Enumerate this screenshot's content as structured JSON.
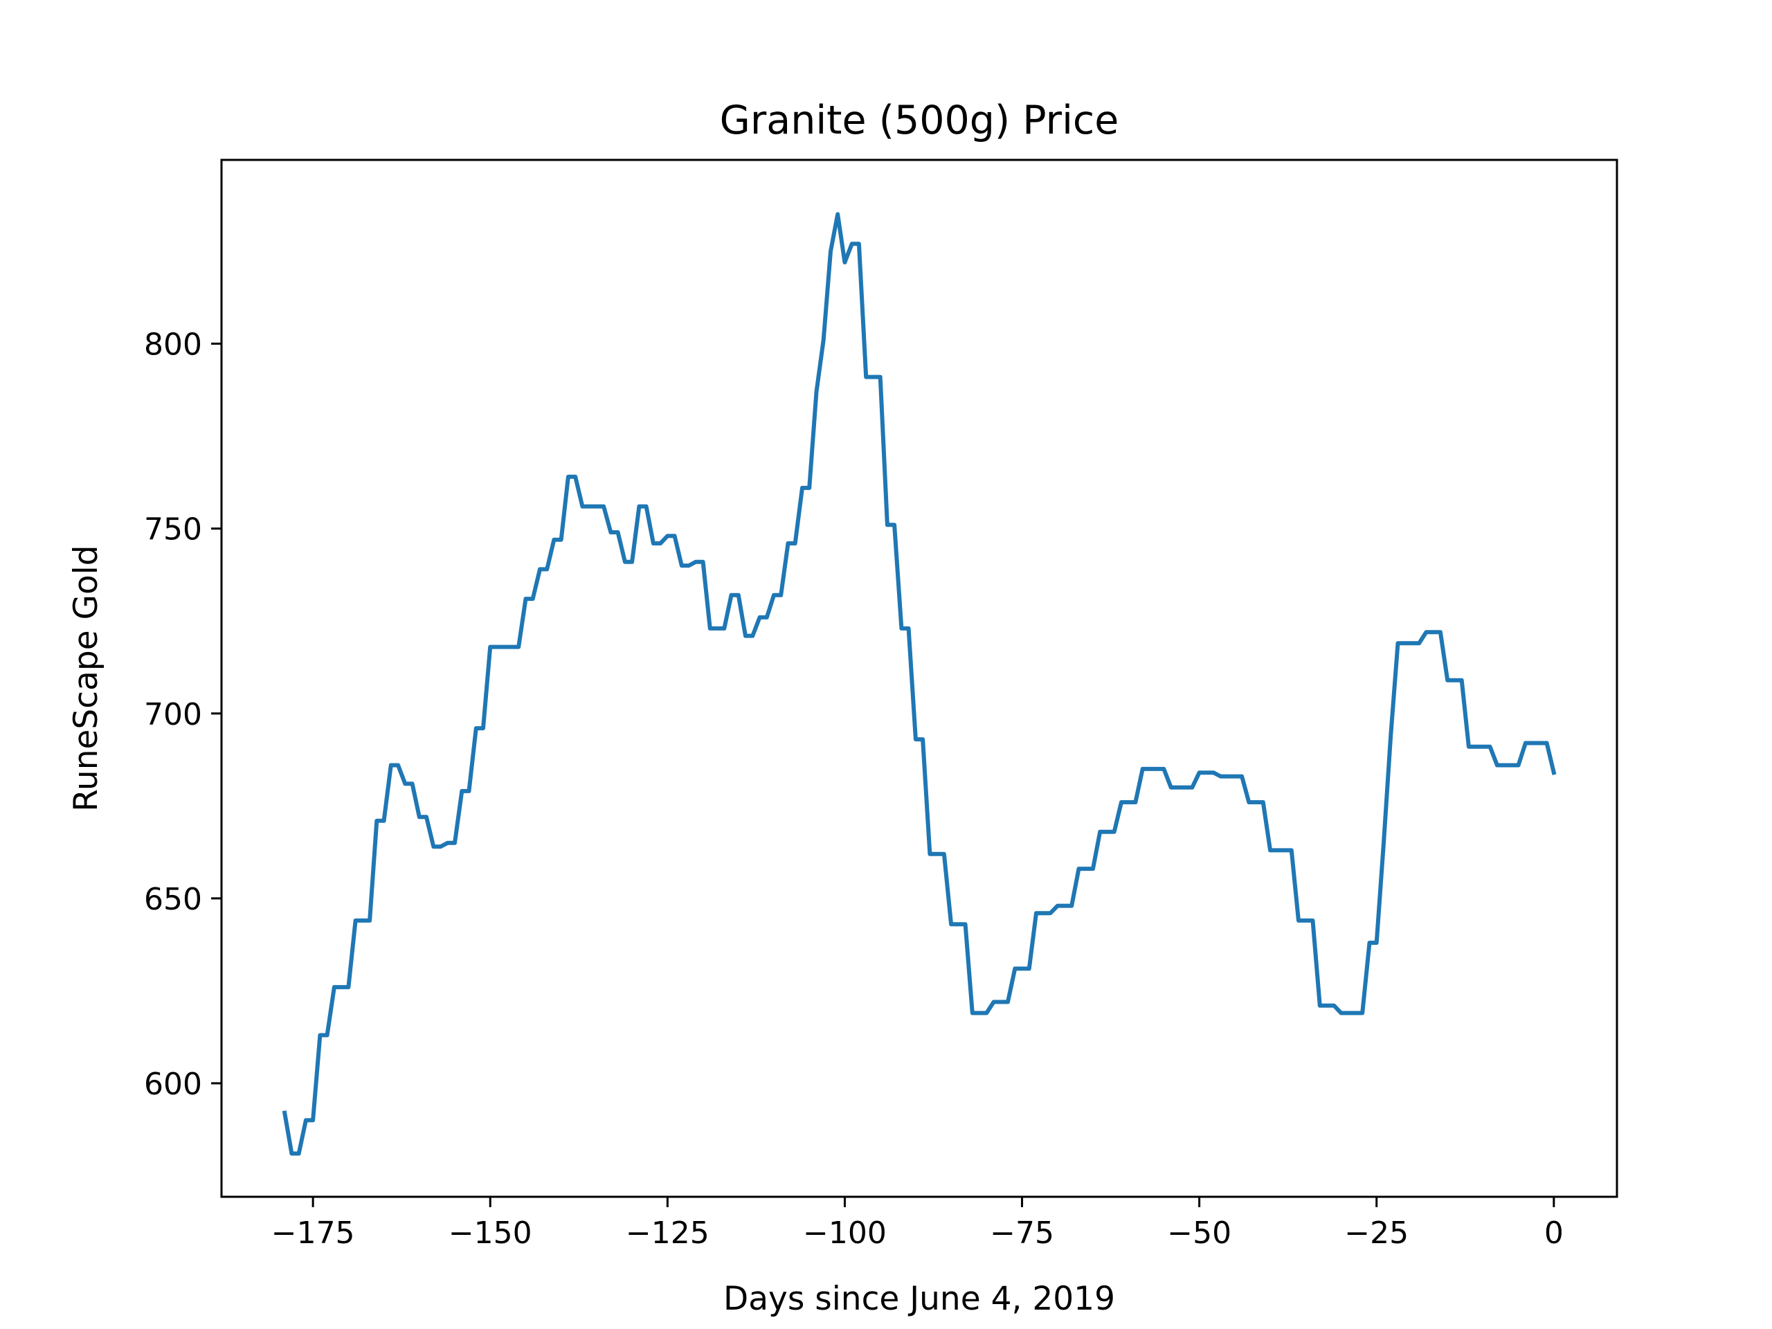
{
  "chart_data": {
    "type": "line",
    "title": "Granite (500g) Price",
    "xlabel": "Days since June 4, 2019",
    "ylabel": "RuneScape Gold",
    "xlim": [
      -187.9,
      8.9
    ],
    "ylim": [
      569.3,
      849.7
    ],
    "xticks": [
      -175,
      -150,
      -125,
      -100,
      -75,
      -50,
      -25,
      0
    ],
    "xtick_labels": [
      "−175",
      "−150",
      "−125",
      "−100",
      "−75",
      "−50",
      "−25",
      "0"
    ],
    "yticks": [
      600,
      650,
      700,
      750,
      800
    ],
    "ytick_labels": [
      "600",
      "650",
      "700",
      "750",
      "800"
    ],
    "grid": false,
    "legend": "none",
    "series": [
      {
        "color": "#1f77b4",
        "x": [
          -179,
          -178,
          -177,
          -176,
          -175,
          -174,
          -173,
          -172,
          -171,
          -170,
          -169,
          -168,
          -167,
          -166,
          -165,
          -164,
          -163,
          -162,
          -161,
          -160,
          -159,
          -158,
          -157,
          -156,
          -155,
          -154,
          -153,
          -152,
          -151,
          -150,
          -149,
          -148,
          -147,
          -146,
          -145,
          -144,
          -143,
          -142,
          -141,
          -140,
          -139,
          -138,
          -137,
          -136,
          -135,
          -134,
          -133,
          -132,
          -131,
          -130,
          -129,
          -128,
          -127,
          -126,
          -125,
          -124,
          -123,
          -122,
          -121,
          -120,
          -119,
          -118,
          -117,
          -116,
          -115,
          -114,
          -113,
          -112,
          -111,
          -110,
          -109,
          -108,
          -107,
          -106,
          -105,
          -104,
          -103,
          -102,
          -101,
          -100,
          -99,
          -98,
          -97,
          -96,
          -95,
          -94,
          -93,
          -92,
          -91,
          -90,
          -89,
          -88,
          -87,
          -86,
          -85,
          -84,
          -83,
          -82,
          -81,
          -80,
          -79,
          -78,
          -77,
          -76,
          -75,
          -74,
          -73,
          -72,
          -71,
          -70,
          -69,
          -68,
          -67,
          -66,
          -65,
          -64,
          -63,
          -62,
          -61,
          -60,
          -59,
          -58,
          -57,
          -56,
          -55,
          -54,
          -53,
          -52,
          -51,
          -50,
          -49,
          -48,
          -47,
          -46,
          -45,
          -44,
          -43,
          -42,
          -41,
          -40,
          -39,
          -38,
          -37,
          -36,
          -35,
          -34,
          -33,
          -32,
          -31,
          -30,
          -29,
          -28,
          -27,
          -26,
          -25,
          -24,
          -23,
          -22,
          -21,
          -20,
          -19,
          -18,
          -17,
          -16,
          -15,
          -14,
          -13,
          -12,
          -11,
          -10,
          -9,
          -8,
          -7,
          -6,
          -5,
          -4,
          -3,
          -2,
          -1,
          0
        ],
        "y": [
          592,
          581,
          581,
          590,
          590,
          613,
          613,
          626,
          626,
          626,
          644,
          644,
          644,
          671,
          671,
          686,
          686,
          681,
          681,
          672,
          672,
          664,
          664,
          665,
          665,
          679,
          679,
          696,
          696,
          718,
          718,
          718,
          718,
          718,
          731,
          731,
          739,
          739,
          747,
          747,
          764,
          764,
          756,
          756,
          756,
          756,
          749,
          749,
          741,
          741,
          756,
          756,
          746,
          746,
          748,
          748,
          740,
          740,
          741,
          741,
          723,
          723,
          723,
          732,
          732,
          721,
          721,
          726,
          726,
          732,
          732,
          746,
          746,
          761,
          761,
          787,
          801,
          825,
          835,
          822,
          827,
          827,
          791,
          791,
          791,
          751,
          751,
          723,
          723,
          693,
          693,
          662,
          662,
          662,
          643,
          643,
          643,
          619,
          619,
          619,
          622,
          622,
          622,
          631,
          631,
          631,
          646,
          646,
          646,
          648,
          648,
          648,
          658,
          658,
          658,
          668,
          668,
          668,
          676,
          676,
          676,
          685,
          685,
          685,
          685,
          680,
          680,
          680,
          680,
          684,
          684,
          684,
          683,
          683,
          683,
          683,
          676,
          676,
          676,
          663,
          663,
          663,
          663,
          644,
          644,
          644,
          621,
          621,
          621,
          619,
          619,
          619,
          619,
          638,
          638,
          665,
          694,
          719,
          719,
          719,
          719,
          722,
          722,
          722,
          709,
          709,
          709,
          691,
          691,
          691,
          691,
          686,
          686,
          686,
          686,
          692,
          692,
          692,
          692,
          684
        ]
      }
    ]
  }
}
